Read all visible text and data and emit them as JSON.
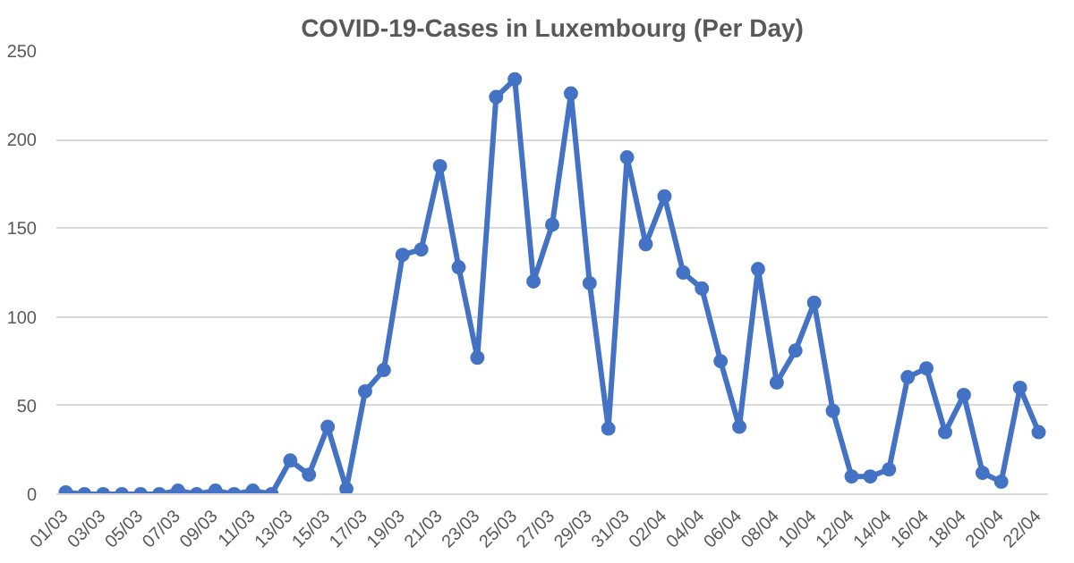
{
  "chart_data": {
    "type": "line",
    "title": "COVID-19-Cases in Luxembourg (Per Day)",
    "categories": [
      "01/03",
      null,
      "03/03",
      null,
      "05/03",
      null,
      "07/03",
      null,
      "09/03",
      null,
      "11/03",
      null,
      "13/03",
      null,
      "15/03",
      null,
      "17/03",
      null,
      "19/03",
      null,
      "21/03",
      null,
      "23/03",
      null,
      "25/03",
      null,
      "27/03",
      null,
      "29/03",
      null,
      "31/03",
      null,
      "02/04",
      null,
      "04/04",
      null,
      "06/04",
      null,
      "08/04",
      null,
      "10/04",
      null,
      "12/04",
      null,
      "14/04",
      null,
      "16/04",
      null,
      "18/04",
      null,
      "20/04",
      null,
      "22/04"
    ],
    "series": [
      {
        "color": "#4472c4",
        "values": [
          1,
          0,
          0,
          0,
          0,
          0,
          2,
          0,
          2,
          0,
          2,
          0,
          19,
          11,
          38,
          3,
          58,
          70,
          135,
          138,
          185,
          128,
          77,
          224,
          234,
          120,
          152,
          226,
          119,
          37,
          190,
          141,
          168,
          125,
          116,
          75,
          38,
          127,
          63,
          81,
          108,
          47,
          10,
          10,
          14,
          66,
          71,
          35,
          56,
          12,
          7,
          60,
          35
        ]
      }
    ],
    "ylim": [
      0,
      250
    ],
    "yticks": [
      0,
      50,
      100,
      150,
      200,
      250
    ],
    "grid": "y",
    "marker": "circle",
    "line_style": "solid"
  }
}
